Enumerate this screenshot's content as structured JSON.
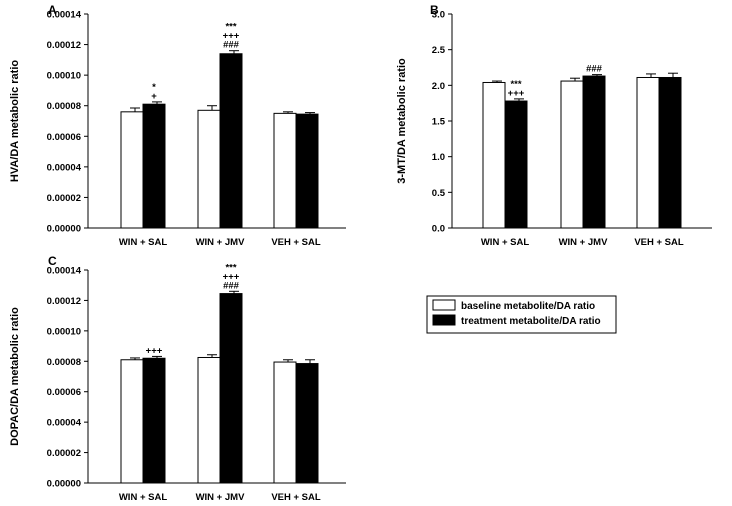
{
  "chart_data": [
    {
      "panel": "A",
      "type": "bar",
      "ylabel": "HVA/DA metabolic ratio",
      "ylim": [
        0,
        0.00014
      ],
      "yticks": [
        "0.00000",
        "0.00002",
        "0.00004",
        "0.00006",
        "0.00008",
        "0.00010",
        "0.00012",
        "0.00014"
      ],
      "categories": [
        "WIN + SAL",
        "WIN + JMV",
        "VEH + SAL"
      ],
      "series": [
        {
          "values": [
            7.6e-05,
            7.7e-05,
            7.5e-05
          ],
          "errors": [
            2.5e-06,
            3e-06,
            1e-06
          ]
        },
        {
          "values": [
            8.1e-05,
            0.000114,
            7.45e-05
          ],
          "errors": [
            1.5e-06,
            2e-06,
            1e-06
          ]
        }
      ],
      "annotations": [
        {
          "category": 0,
          "lines": [
            "*",
            "+"
          ]
        },
        {
          "category": 1,
          "lines": [
            "***",
            "+++",
            "###"
          ]
        }
      ]
    },
    {
      "panel": "B",
      "type": "bar",
      "ylabel": "3-MT/DA metabolic ratio",
      "ylim": [
        0,
        3.0
      ],
      "yticks": [
        "0.0",
        "0.5",
        "1.0",
        "1.5",
        "2.0",
        "2.5",
        "3.0"
      ],
      "categories": [
        "WIN + SAL",
        "WIN + JMV",
        "VEH + SAL"
      ],
      "series": [
        {
          "values": [
            2.04,
            2.06,
            2.11
          ],
          "errors": [
            0.02,
            0.04,
            0.05
          ]
        },
        {
          "values": [
            1.78,
            2.13,
            2.11
          ],
          "errors": [
            0.03,
            0.02,
            0.06
          ]
        }
      ],
      "annotations": [
        {
          "category": 0,
          "lines": [
            "***",
            "+++"
          ]
        },
        {
          "category": 1,
          "lines": [
            "###"
          ]
        }
      ]
    },
    {
      "panel": "C",
      "type": "bar",
      "ylabel": "DOPAC/DA metabolic ratio",
      "ylim": [
        0,
        0.00014
      ],
      "yticks": [
        "0.00000",
        "0.00002",
        "0.00004",
        "0.00006",
        "0.00008",
        "0.00010",
        "0.00012",
        "0.00014"
      ],
      "categories": [
        "WIN + SAL",
        "WIN + JMV",
        "VEH + SAL"
      ],
      "series": [
        {
          "values": [
            8.1e-05,
            8.25e-05,
            7.95e-05
          ],
          "errors": [
            1.2e-06,
            1.8e-06,
            1.5e-06
          ]
        },
        {
          "values": [
            8.2e-05,
            0.0001245,
            7.85e-05
          ],
          "errors": [
            1.2e-06,
            1.5e-06,
            2.5e-06
          ]
        }
      ],
      "annotations": [
        {
          "category": 0,
          "lines": [
            "+++"
          ]
        },
        {
          "category": 1,
          "lines": [
            "***",
            "+++",
            "###"
          ]
        }
      ]
    }
  ],
  "legend": {
    "items": [
      {
        "label": "baseline metabolite/DA ratio",
        "color": "#ffffff"
      },
      {
        "label": "treatment metabolite/DA ratio",
        "color": "#000000"
      }
    ]
  }
}
